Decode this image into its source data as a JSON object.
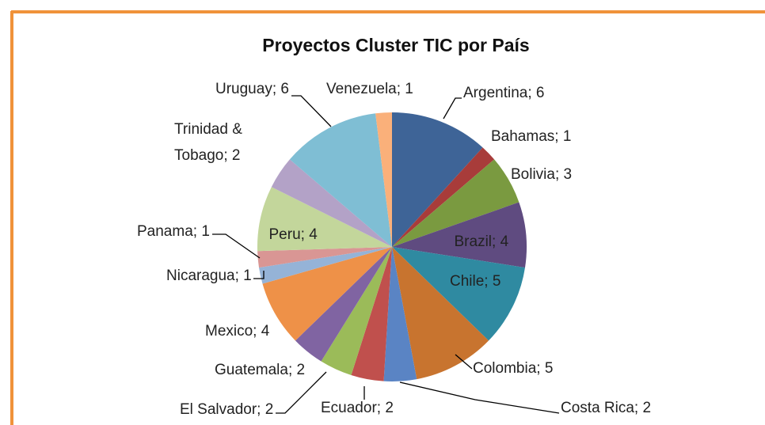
{
  "chart_data": {
    "type": "pie",
    "title": "Proyectos Cluster TIC por País",
    "values": [
      6,
      1,
      3,
      4,
      5,
      5,
      2,
      2,
      2,
      2,
      4,
      1,
      1,
      4,
      2,
      6,
      1
    ],
    "value_labels": [
      "Argentina; 6",
      "Bahamas; 1",
      "Bolivia; 3",
      "Brazil; 4",
      "Chile; 5",
      "Colombia; 5",
      "Costa Rica; 2",
      "Ecuador; 2",
      "El Salvador; 2",
      "Guatemala; 2",
      "Mexico; 4",
      "Nicaragua; 1",
      "Panama; 1",
      "Peru; 4",
      "Trinidad & Tobago; 2",
      "Uruguay; 6",
      "Venezuela; 1"
    ],
    "colors": [
      "#3e6497",
      "#a83c3a",
      "#7a9a40",
      "#5f4b80",
      "#2f8aa1",
      "#c8742f",
      "#5a84c4",
      "#c0504d",
      "#9bbb59",
      "#8064a2",
      "#ee9148",
      "#95b3d7",
      "#d99694",
      "#c3d69b",
      "#b3a2c7",
      "#7fbed4",
      "#fab07a"
    ]
  }
}
